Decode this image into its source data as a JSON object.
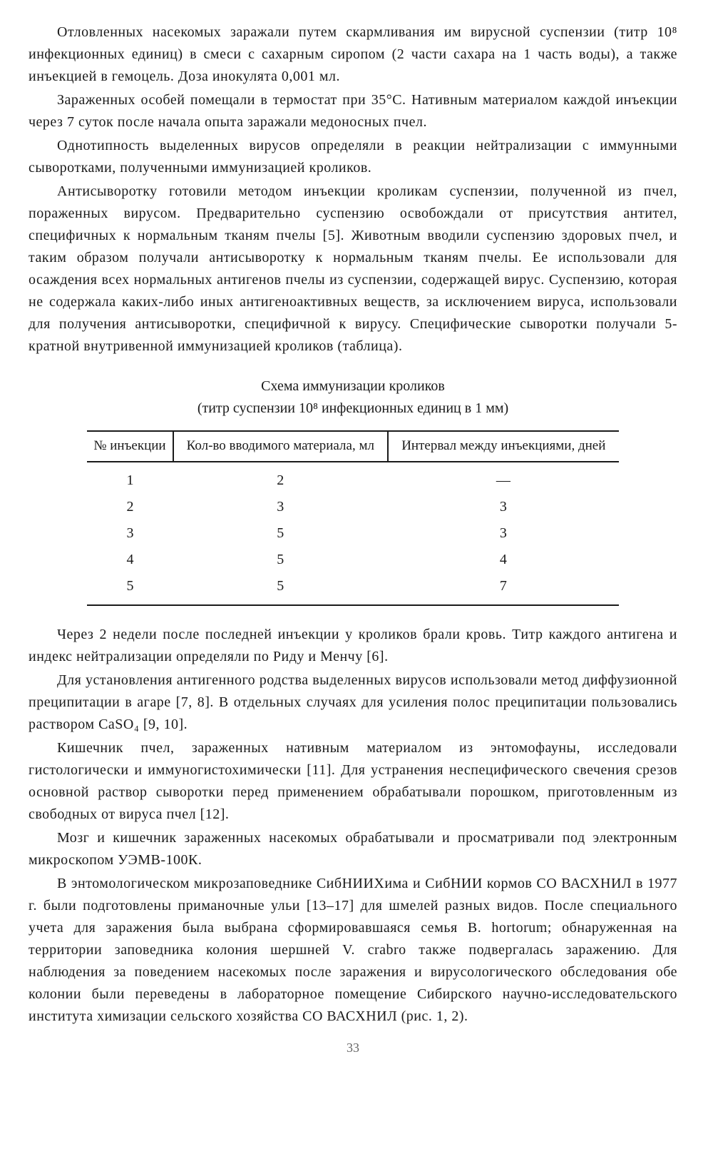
{
  "paragraphs_before": [
    "Отловленных насекомых заражали путем скармливания им вирусной суспензии (титр 10⁸ инфекционных единиц) в смеси с сахарным сиропом (2 части сахара на 1 часть воды), а также инъекцией в гемоцель. Доза инокулята 0,001 мл.",
    "Зараженных особей помещали в термостат при 35°С. Нативным материалом каждой инъекции через 7 суток после начала опыта заражали медоносных пчел.",
    "Однотипность выделенных вирусов определяли в реакции нейтрализации с иммунными сыворотками, полученными иммунизацией кроликов.",
    "Антисыворотку готовили методом инъекции кроликам суспензии, полученной из пчел, пораженных вирусом. Предварительно суспензию освобождали от присутствия антител, специфичных к нормальным тканям пчелы [5]. Животным вводили суспензию здоровых пчел, и таким образом получали антисыворотку к нормальным тканям пчелы. Ее использовали для осаждения всех нормальных антигенов пчелы из суспензии, содержащей вирус. Суспензию, которая не содержала каких-либо иных антигеноактивных веществ, за исключением вируса, использовали для получения антисыворотки, специфичной к вирусу. Специфические сыворотки получали 5-кратной внутривенной иммунизацией кроликов (таблица)."
  ],
  "table": {
    "title": "Схема иммунизации кроликов",
    "subtitle": "(титр суспензии 10⁸ инфекционных единиц в 1 мм)",
    "columns": [
      "№ инъекции",
      "Кол-во вводимого материала, мл",
      "Интервал между инъекциями, дней"
    ],
    "rows": [
      [
        "1",
        "2",
        "—"
      ],
      [
        "2",
        "3",
        "3"
      ],
      [
        "3",
        "5",
        "3"
      ],
      [
        "4",
        "5",
        "4"
      ],
      [
        "5",
        "5",
        "7"
      ]
    ],
    "col_widths": [
      "33%",
      "34%",
      "33%"
    ]
  },
  "paragraphs_after": [
    "Через 2 недели после последней инъекции у кроликов брали кровь. Титр каждого антигена и индекс нейтрализации определяли по Риду и Менчу [6].",
    "Для установления антигенного родства выделенных вирусов использовали метод диффузионной преципитации в агаре [7, 8]. В отдельных случаях для усиления полос преципитации пользовались раствором CaSO₄ [9, 10].",
    "Кишечник пчел, зараженных нативным материалом из энтомофауны, исследовали гистологически и иммуногистохимически [11]. Для устранения неспецифического свечения срезов основной раствор сыворотки перед применением обрабатывали порошком, приготовленным из свободных от вируса пчел [12].",
    "Мозг и кишечник зараженных насекомых обрабатывали и просматривали под электронным микроскопом УЭМВ-100К.",
    "В энтомологическом микрозаповеднике СибНИИХима и СибНИИ кормов СО ВАСХНИЛ в 1977 г. были подготовлены приманочные ульи [13–17] для шмелей разных видов. После специального учета для заражения была выбрана сформировавшаяся семья B. hortorum; обнаруженная на территории заповедника колония шершней V. crabro также подвергалась заражению. Для наблюдения за поведением насекомых после заражения и вирусологического обследования обе колонии были переведены в лабораторное помещение Сибирского научно-исследовательского института химизации сельского хозяйства СО ВАСХНИЛ (рис. 1, 2)."
  ],
  "page_number": "33",
  "styling": {
    "background_color": "#ffffff",
    "text_color": "#1a1a1a",
    "border_color": "#1a1a1a",
    "font_size_body": 20,
    "font_size_table_header": 19,
    "font_size_table_cell": 20,
    "font_family": "Times New Roman",
    "text_indent": 40,
    "table_width_pct": 82
  }
}
